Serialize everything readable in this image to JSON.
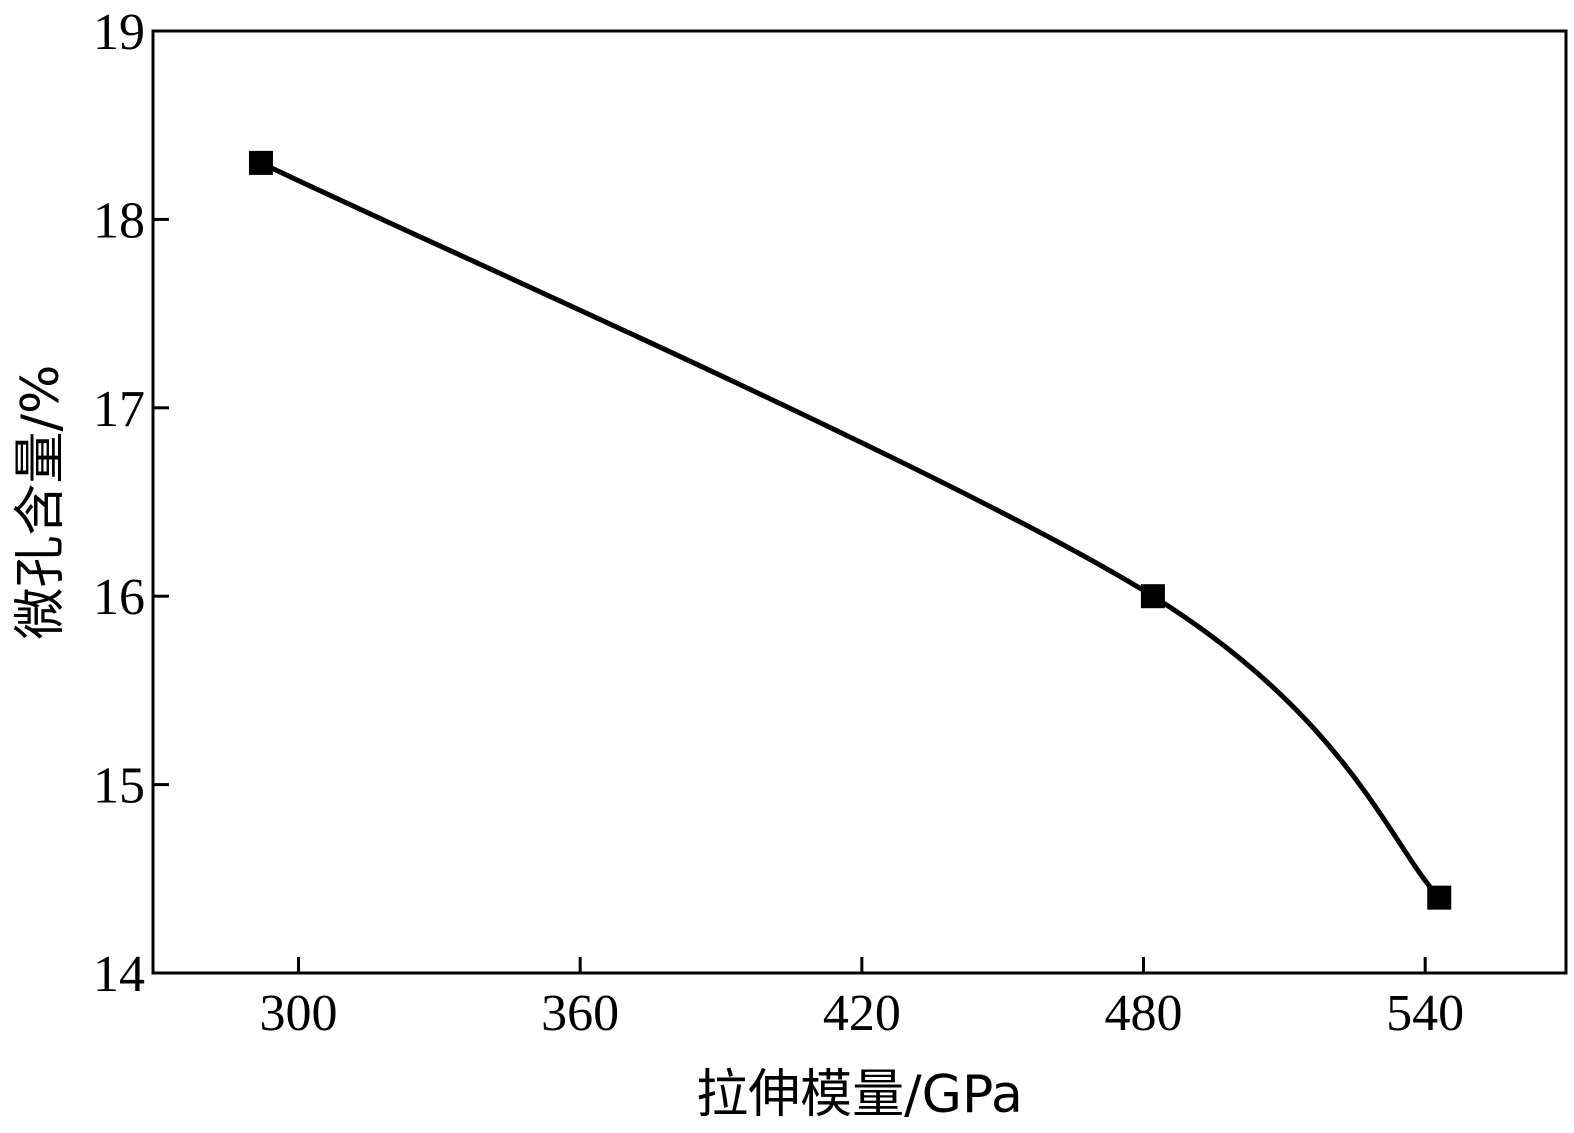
{
  "chart_data": {
    "type": "line",
    "title": "",
    "xlabel": "拉伸模量/GPa",
    "ylabel": "微孔含量/%",
    "xlim": [
      269,
      570
    ],
    "ylim": [
      14,
      19
    ],
    "xticks": [
      "300",
      "360",
      "420",
      "480",
      "540"
    ],
    "yticks": [
      "14",
      "15",
      "16",
      "17",
      "18",
      "19"
    ],
    "grid": false,
    "legend": "none",
    "series": [
      {
        "color": "#000000",
        "marker": "square",
        "x": [
          292,
          482,
          543
        ],
        "y": [
          18.3,
          16.0,
          14.4
        ]
      }
    ]
  }
}
